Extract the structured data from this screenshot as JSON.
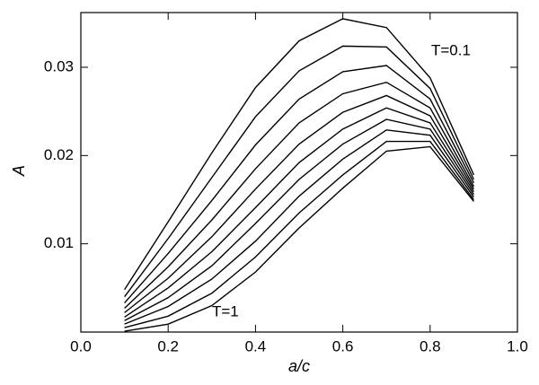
{
  "chart_data": {
    "type": "line",
    "x_label": "a/c",
    "y_label": "A",
    "x": [
      0.1,
      0.2,
      0.3,
      0.4,
      0.5,
      0.6,
      0.7,
      0.8,
      0.9
    ],
    "color": "#000000",
    "series": [
      {
        "values": [
          0.0048,
          0.0125,
          0.0203,
          0.0277,
          0.033,
          0.0355,
          0.0345,
          0.0288,
          0.0178
        ]
      },
      {
        "values": [
          0.004,
          0.0106,
          0.0175,
          0.0244,
          0.0296,
          0.0324,
          0.0323,
          0.0276,
          0.0173
        ]
      },
      {
        "values": [
          0.0033,
          0.0089,
          0.0149,
          0.0212,
          0.0264,
          0.0295,
          0.0302,
          0.0264,
          0.0169
        ]
      },
      {
        "values": [
          0.0027,
          0.0074,
          0.0127,
          0.0185,
          0.0237,
          0.027,
          0.0283,
          0.0254,
          0.0165
        ]
      },
      {
        "values": [
          0.0022,
          0.0061,
          0.0108,
          0.0162,
          0.0213,
          0.0249,
          0.0268,
          0.0245,
          0.0162
        ]
      },
      {
        "values": [
          0.0017,
          0.005,
          0.0091,
          0.0141,
          0.0192,
          0.023,
          0.0254,
          0.0237,
          0.0159
        ]
      },
      {
        "values": [
          0.0013,
          0.0039,
          0.0075,
          0.0123,
          0.0173,
          0.0213,
          0.0241,
          0.023,
          0.0156
        ]
      },
      {
        "values": [
          0.0009,
          0.0029,
          0.006,
          0.0103,
          0.0154,
          0.0196,
          0.0229,
          0.0223,
          0.0153
        ]
      },
      {
        "values": [
          0.0005,
          0.0018,
          0.0044,
          0.0085,
          0.0135,
          0.0178,
          0.0216,
          0.0216,
          0.015
        ]
      },
      {
        "values": [
          0.0001,
          0.0009,
          0.003,
          0.0068,
          0.0118,
          0.0163,
          0.0205,
          0.021,
          0.0148
        ]
      }
    ],
    "annotations": [
      "T=0.1",
      "T=1"
    ],
    "xlim": [
      0,
      1
    ],
    "xticks": [
      {
        "value": 0,
        "label": "0.0"
      },
      0.2,
      0.4,
      0.6,
      0.8,
      {
        "value": 1,
        "label": "1.0"
      }
    ],
    "ylim": [
      0,
      0.0362
    ],
    "yticks": [
      0.01,
      0.02,
      0.03
    ],
    "grid": false
  }
}
